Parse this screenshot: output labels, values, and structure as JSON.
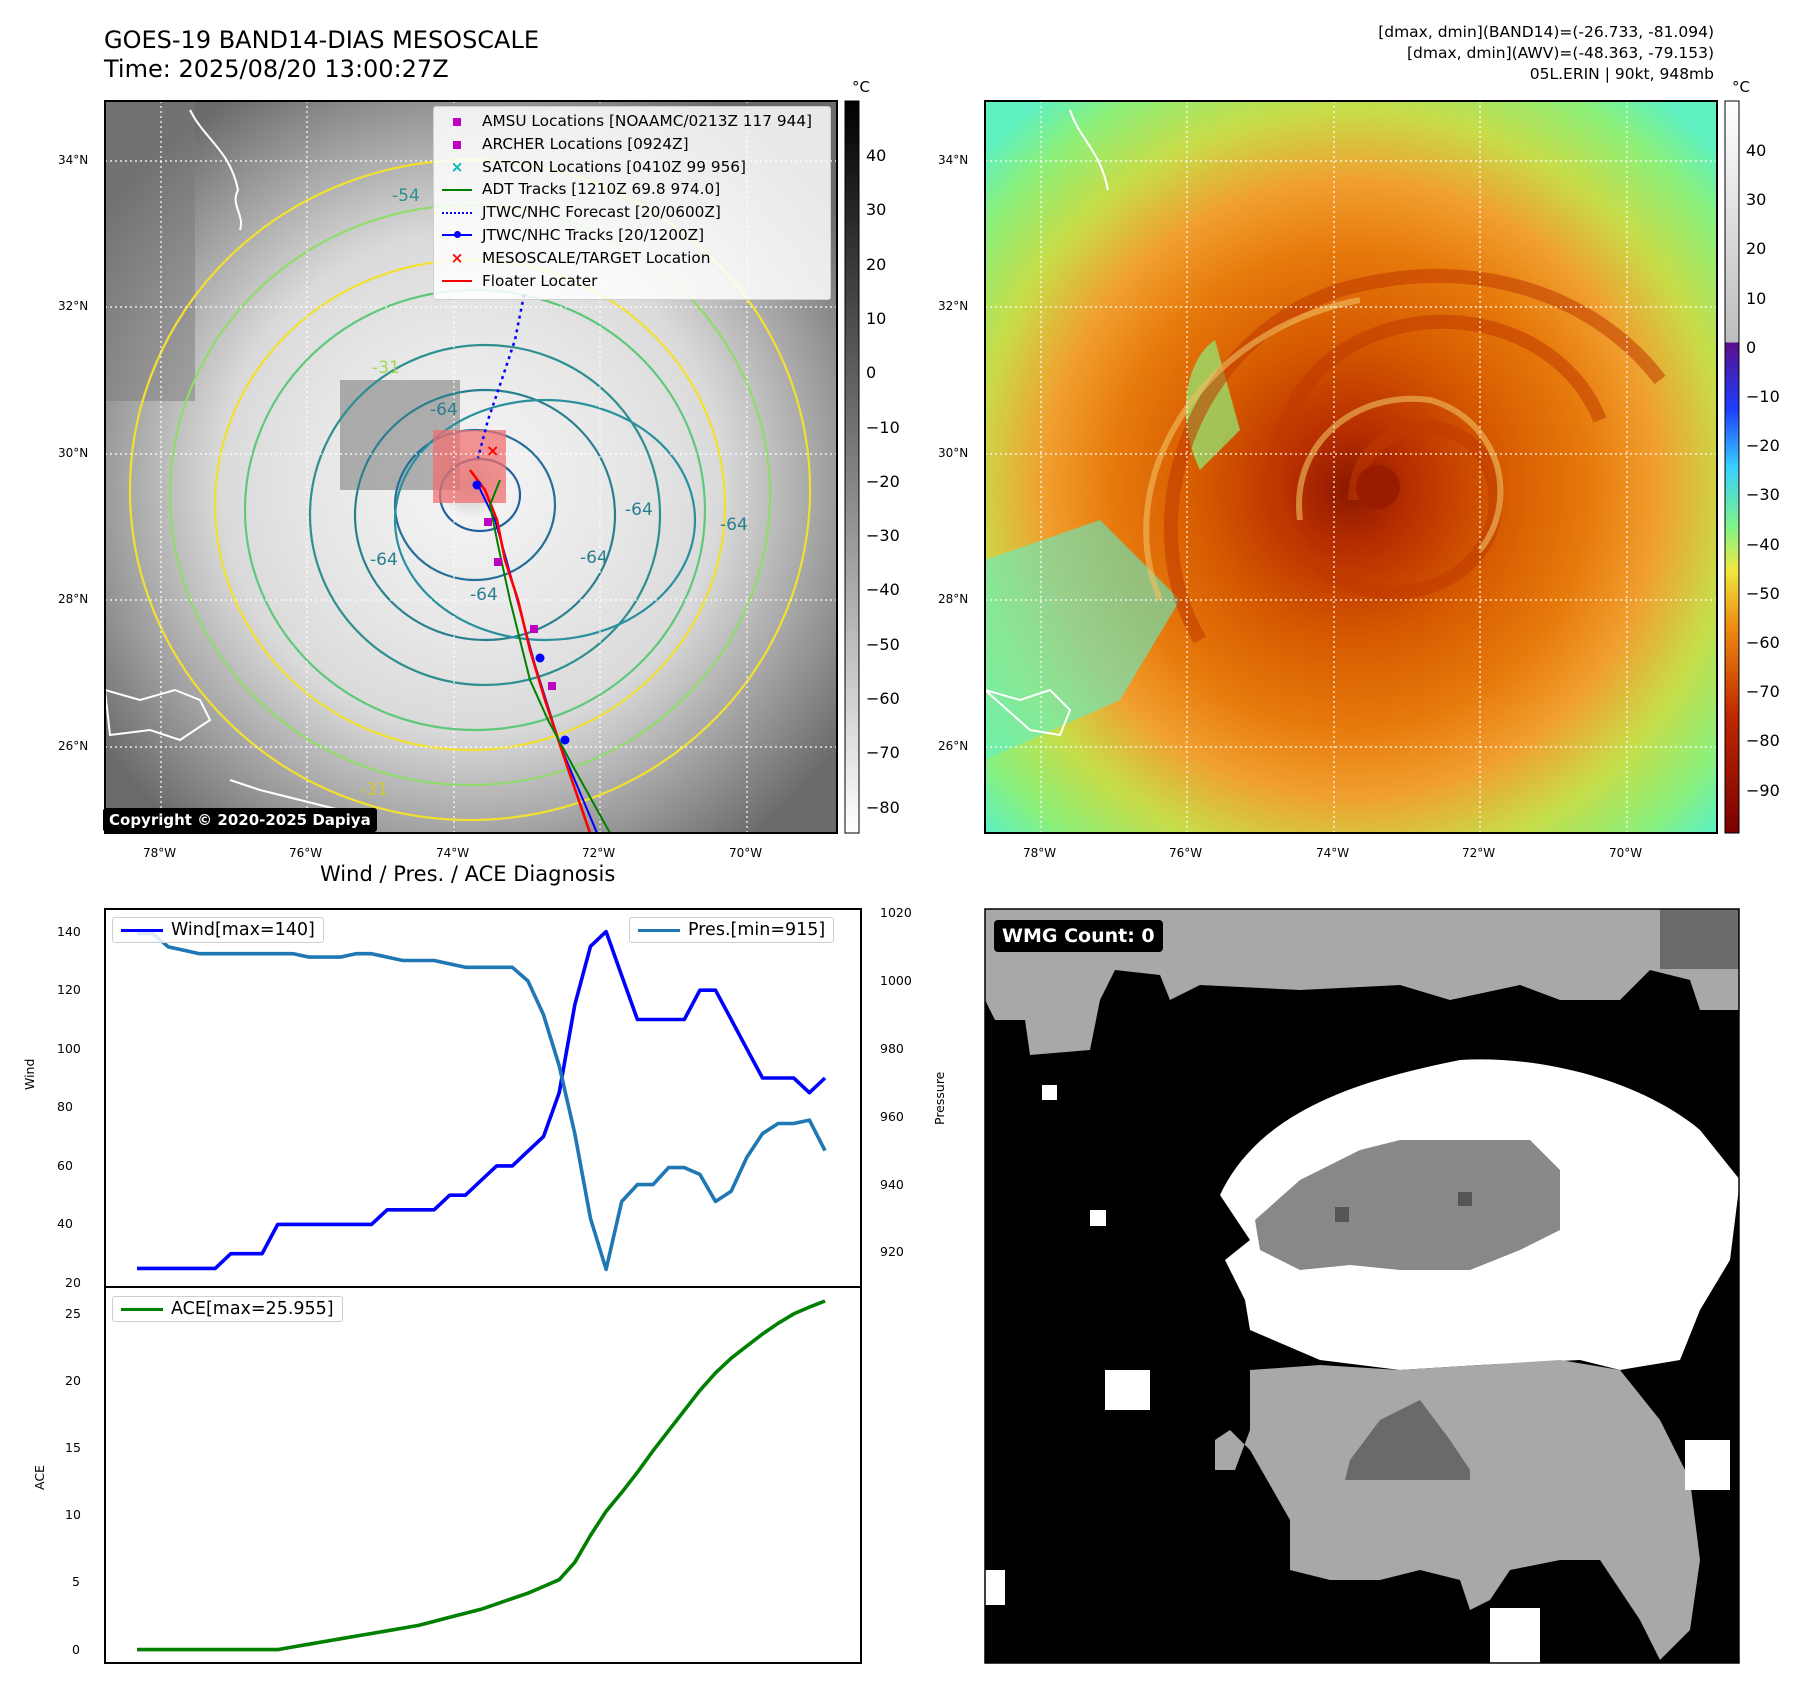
{
  "header": {
    "title_line1": "GOES-19 BAND14-DIAS MESOSCALE",
    "title_line2": "Time: 2025/08/20 13:00:27Z",
    "info_line1": "[dmax, dmin](BAND14)=(-26.733, -81.094)",
    "info_line2": "[dmax, dmin](AWV)=(-48.363, -79.153)",
    "info_line3": "05L.ERIN | 90kt, 948mb"
  },
  "maps": {
    "lat_labels": [
      "34°N",
      "32°N",
      "30°N",
      "28°N",
      "26°N"
    ],
    "lon_labels": [
      "78°W",
      "76°W",
      "74°W",
      "72°W",
      "70°W"
    ],
    "contour_labels": [
      "-54",
      "-31",
      "-64",
      "-64",
      "-64",
      "-64",
      "-64",
      "-64",
      "-31"
    ],
    "copyright": "Copyright © 2020-2025 Dapiya"
  },
  "colorbar_left": {
    "unit": "°C",
    "ticks": [
      "40",
      "30",
      "20",
      "10",
      "0",
      "−10",
      "−20",
      "−30",
      "−40",
      "−50",
      "−60",
      "−70",
      "−80"
    ]
  },
  "colorbar_right": {
    "unit": "°C",
    "ticks": [
      "40",
      "30",
      "20",
      "10",
      "0",
      "−10",
      "−20",
      "−30",
      "−40",
      "−50",
      "−60",
      "−70",
      "−80",
      "−90"
    ]
  },
  "legend": {
    "items": [
      {
        "label": "AMSU Locations [NOAAMC/0213Z 117 944]",
        "marker": "square",
        "color": "#c000c0"
      },
      {
        "label": "ARCHER Locations [0924Z]",
        "marker": "square",
        "color": "#c000c0"
      },
      {
        "label": "SATCON Locations [0410Z 99 956]",
        "marker": "x",
        "color": "#00b8b8"
      },
      {
        "label": "ADT Tracks [1210Z 69.8 974.0]",
        "marker": "line",
        "color": "#008000"
      },
      {
        "label": "JTWC/NHC Forecast [20/0600Z]",
        "marker": "dotted",
        "color": "#0000ff"
      },
      {
        "label": "JTWC/NHC Tracks [20/1200Z]",
        "marker": "line-dot",
        "color": "#0000ff"
      },
      {
        "label": "MESOSCALE/TARGET Location",
        "marker": "x",
        "color": "#ff0000"
      },
      {
        "label": "Floater Locater",
        "marker": "line",
        "color": "#ff0000"
      }
    ]
  },
  "wmg": {
    "label": "WMG Count: 0"
  },
  "diagnosis": {
    "title": "Wind / Pres. / ACE Diagnosis",
    "wind_ylabel": "Wind",
    "pres_ylabel": "Pressure",
    "ace_ylabel": "ACE",
    "wind_legend": "Wind[max=140]",
    "pres_legend": "Pres.[min=915]",
    "ace_legend": "ACE[max=25.955]",
    "wind_ticks": [
      "140",
      "120",
      "100",
      "80",
      "60",
      "40",
      "20"
    ],
    "pres_ticks": [
      "1020",
      "1000",
      "980",
      "960",
      "940",
      "920"
    ],
    "ace_ticks": [
      "25",
      "20",
      "15",
      "10",
      "5",
      "0"
    ]
  },
  "chart_data": [
    {
      "type": "line",
      "series": [
        {
          "name": "Wind[max=140]",
          "color": "#0000ff",
          "axis": "left",
          "values": [
            25,
            25,
            25,
            25,
            25,
            25,
            30,
            30,
            30,
            40,
            40,
            40,
            40,
            40,
            40,
            40,
            45,
            45,
            45,
            45,
            50,
            50,
            55,
            60,
            60,
            65,
            70,
            85,
            115,
            135,
            140,
            125,
            110,
            110,
            110,
            110,
            120,
            120,
            110,
            100,
            90,
            90,
            90,
            85,
            90
          ]
        },
        {
          "name": "Pres.[min=915]",
          "color": "#1f77b4",
          "axis": "right",
          "values": [
            1014,
            1014,
            1010,
            1009,
            1008,
            1008,
            1008,
            1008,
            1008,
            1008,
            1008,
            1007,
            1007,
            1007,
            1008,
            1008,
            1007,
            1006,
            1006,
            1006,
            1005,
            1004,
            1004,
            1004,
            1004,
            1000,
            990,
            975,
            955,
            930,
            915,
            935,
            940,
            940,
            945,
            945,
            943,
            935,
            938,
            948,
            955,
            958,
            958,
            959,
            950
          ]
        }
      ],
      "ylim_left": [
        20,
        145
      ],
      "ylim_right": [
        911,
        1020
      ],
      "grid": false
    },
    {
      "type": "line",
      "series": [
        {
          "name": "ACE[max=25.955]",
          "color": "#008000",
          "values": [
            0,
            0,
            0,
            0,
            0,
            0,
            0,
            0,
            0,
            0,
            0.2,
            0.4,
            0.6,
            0.8,
            1.0,
            1.2,
            1.4,
            1.6,
            1.8,
            2.1,
            2.4,
            2.7,
            3.0,
            3.4,
            3.8,
            4.2,
            4.7,
            5.2,
            6.5,
            8.5,
            10.3,
            11.7,
            13.2,
            14.8,
            16.3,
            17.8,
            19.3,
            20.6,
            21.7,
            22.6,
            23.5,
            24.3,
            25.0,
            25.5,
            25.955
          ]
        }
      ],
      "ylim": [
        -1,
        27
      ],
      "grid": false
    }
  ]
}
